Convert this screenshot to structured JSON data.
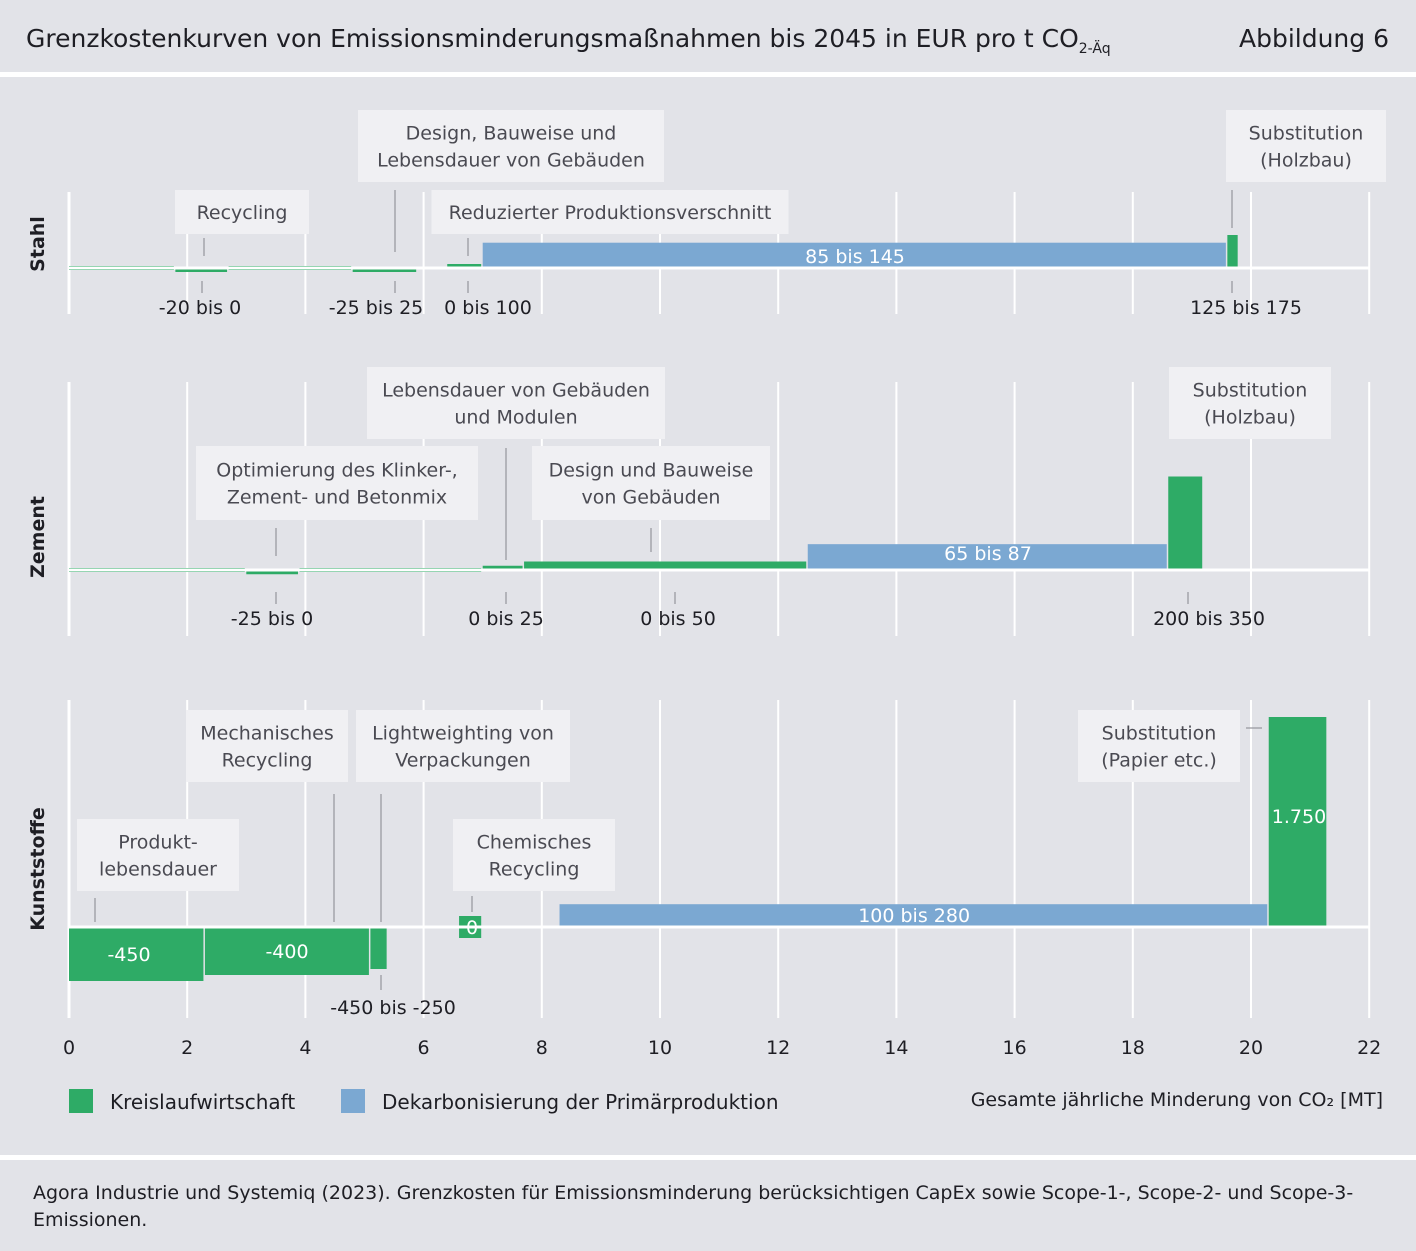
{
  "header": {
    "title": "Grenzkostenkurven von Emissionsminderungsmaßnahmen bis 2045 in EUR pro t CO",
    "title_sub": "2-Äq",
    "figure_label": "Abbildung 6"
  },
  "colors": {
    "kreislauf": "#2eab66",
    "primaer": "#7ba8d2",
    "background": "#e2e3e8",
    "label_box": "#f0f0f3",
    "gridline": "#ffffff"
  },
  "legend": {
    "kreislauf": "Kreislaufwirtschaft",
    "primaer": "Dekarbonisierung der Primärproduktion"
  },
  "xlabel": "Gesamte jährliche Minderung von CO₂ [MT]",
  "source": "Agora Industrie und Systemiq (2023). Grenzkosten für Emissionsminderung berücksichtigen CapEx sowie Scope-1-, Scope-2- und Scope-3-Emissionen.",
  "chart_data": {
    "type": "bar",
    "subtype": "marginal abatement cost curve (variable-width bars)",
    "x_axis": {
      "range": [
        0,
        22
      ],
      "ticks": [
        "0",
        "2",
        "4",
        "6",
        "8",
        "10",
        "12",
        "14",
        "16",
        "18",
        "20",
        "22"
      ]
    },
    "grid": true,
    "legend_position": "bottom-left",
    "panels": [
      {
        "name": "Stahl",
        "measures": [
          {
            "label": "",
            "x0": 0.0,
            "x1": 1.8,
            "cost": 0,
            "category": "kreislauf",
            "value_label": ""
          },
          {
            "label": "Recycling",
            "x0": 1.8,
            "x1": 2.7,
            "cost": -10,
            "category": "kreislauf",
            "value_label": "-20 bis 0"
          },
          {
            "label": "",
            "x0": 2.7,
            "x1": 4.8,
            "cost": 0,
            "category": "kreislauf",
            "value_label": ""
          },
          {
            "label": "Design, Bauweise und Lebensdauer von Gebäuden",
            "x0": 4.8,
            "x1": 5.9,
            "cost": -10,
            "category": "kreislauf",
            "value_label": "-25 bis 25"
          },
          {
            "label": "Reduzierter Produktionsverschnitt",
            "x0": 6.4,
            "x1": 7.0,
            "cost": 15,
            "category": "kreislauf",
            "value_label": "0 bis 100"
          },
          {
            "label": "",
            "x0": 7.0,
            "x1": 19.6,
            "cost": 115,
            "category": "primaer",
            "value_label": "85 bis 145"
          },
          {
            "label": "Substitution (Holzbau)",
            "x0": 19.6,
            "x1": 19.8,
            "cost": 150,
            "category": "kreislauf",
            "value_label": "125 bis 175"
          }
        ]
      },
      {
        "name": "Zement",
        "measures": [
          {
            "label": "",
            "x0": 0.0,
            "x1": 3.0,
            "cost": 0,
            "category": "kreislauf",
            "value_label": ""
          },
          {
            "label": "Optimierung des Klinker-, Zement- und Betonmix",
            "x0": 3.0,
            "x1": 3.9,
            "cost": -12.5,
            "category": "kreislauf",
            "value_label": "-25 bis 0"
          },
          {
            "label": "",
            "x0": 3.9,
            "x1": 7.0,
            "cost": 0,
            "category": "kreislauf",
            "value_label": ""
          },
          {
            "label": "Lebensdauer von Gebäuden und Modulen",
            "x0": 7.0,
            "x1": 7.7,
            "cost": 12.5,
            "category": "kreislauf",
            "value_label": "0 bis 25"
          },
          {
            "label": "Design und Bauweise von Gebäuden",
            "x0": 7.7,
            "x1": 12.5,
            "cost": 25,
            "category": "kreislauf",
            "value_label": "0 bis 50"
          },
          {
            "label": "",
            "x0": 12.5,
            "x1": 18.6,
            "cost": 76,
            "category": "primaer",
            "value_label": "65 bis 87"
          },
          {
            "label": "Substitution (Holzbau)",
            "x0": 18.6,
            "x1": 19.2,
            "cost": 275,
            "category": "kreislauf",
            "value_label": "200 bis 350"
          }
        ]
      },
      {
        "name": "Kunststoffe",
        "measures": [
          {
            "label": "Produkt-lebensdauer",
            "x0": 0.0,
            "x1": 2.3,
            "cost": -450,
            "category": "kreislauf",
            "value_label": "-450"
          },
          {
            "label": "Mechanisches Recycling",
            "x0": 2.3,
            "x1": 5.1,
            "cost": -400,
            "category": "kreislauf",
            "value_label": "-400"
          },
          {
            "label": "Lightweighting von Verpackungen",
            "x0": 5.1,
            "x1": 5.4,
            "cost": -350,
            "category": "kreislauf",
            "value_label": "-450 bis -250"
          },
          {
            "label": "Chemisches Recycling",
            "x0": 6.6,
            "x1": 7.0,
            "cost": 0,
            "category": "kreislauf",
            "value_label": "0"
          },
          {
            "label": "",
            "x0": 8.3,
            "x1": 20.3,
            "cost": 190,
            "category": "primaer",
            "value_label": "100 bis 280"
          },
          {
            "label": "Substitution (Papier etc.)",
            "x0": 20.3,
            "x1": 21.3,
            "cost": 1750,
            "category": "kreislauf",
            "value_label": "1.750"
          }
        ]
      }
    ]
  }
}
